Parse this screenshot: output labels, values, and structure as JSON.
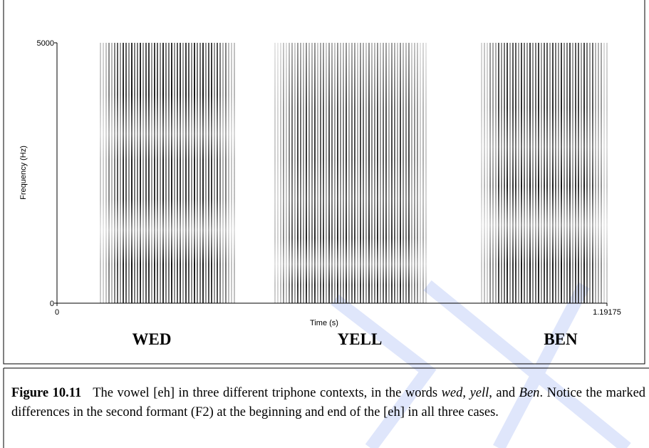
{
  "figure": {
    "y_axis_label": "Frequency (Hz)",
    "y_ticks": [
      "5000",
      "0"
    ],
    "x_ticks": [
      "0",
      "1.19175"
    ],
    "x_axis_label": "Time (s)",
    "words": [
      "WED",
      "YELL",
      "BEN"
    ]
  },
  "caption": {
    "label": "Figure 10.11",
    "parts": [
      "The vowel [eh] in three different triphone contexts, in the words ",
      "wed",
      ", ",
      "yell",
      ",",
      "and ",
      "Ben",
      ". Notice the marked differences in the second formant (F2) at the beginning and end of the [eh] in all three cases."
    ]
  }
}
